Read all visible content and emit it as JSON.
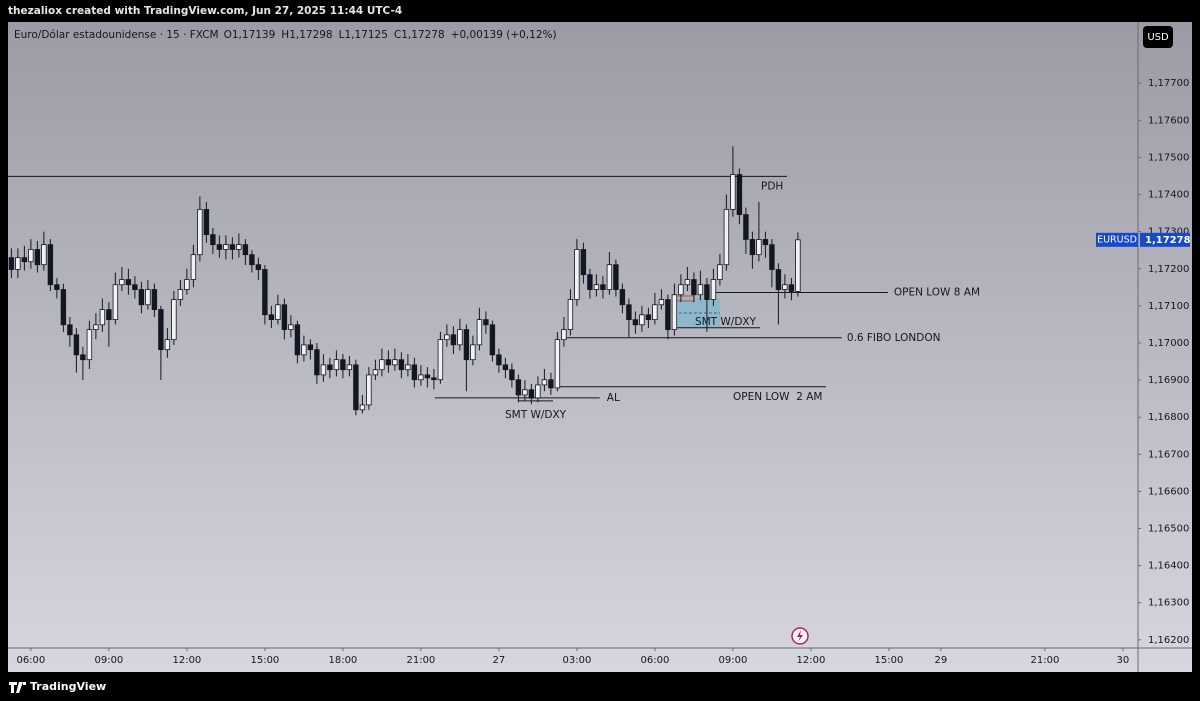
{
  "header": {
    "title": "thezaliox created with TradingView.com, Jun 27, 2025 11:44 UTC-4"
  },
  "footer": {
    "brand": "TradingView"
  },
  "chart_data": {
    "type": "candlestick",
    "title": "Euro/Dólar estadounidense · 15 · FXCM",
    "ohlc_legend": [
      "O1,17139",
      "H1,17298",
      "L1,17125",
      "C1,17278",
      "+0,00139 (+0,12%)"
    ],
    "currency": "USD",
    "symbol_tag": "EURUSD",
    "last_price_label": "1,17278",
    "up_color": "#f2f2f4",
    "down_color": "#131722",
    "border_color": "#131722",
    "grid": false,
    "xlim": [
      5.12,
      48.58
    ],
    "ylim": [
      1.16178,
      1.17865
    ],
    "xticks": [
      {
        "value": 6,
        "label": "06:00"
      },
      {
        "value": 9,
        "label": "09:00"
      },
      {
        "value": 12,
        "label": "12:00"
      },
      {
        "value": 15,
        "label": "15:00"
      },
      {
        "value": 18,
        "label": "18:00"
      },
      {
        "value": 21,
        "label": "21:00"
      },
      {
        "value": 24,
        "label": "27"
      },
      {
        "value": 27,
        "label": "03:00"
      },
      {
        "value": 30,
        "label": "06:00"
      },
      {
        "value": 33,
        "label": "09:00"
      },
      {
        "value": 36,
        "label": "12:00"
      },
      {
        "value": 39,
        "label": "15:00"
      },
      {
        "value": 41,
        "label": "29"
      },
      {
        "value": 45,
        "label": "21:00"
      },
      {
        "value": 48,
        "label": "30"
      }
    ],
    "yticks": [
      {
        "value": 1.162,
        "label": "1,16200"
      },
      {
        "value": 1.163,
        "label": "1,16300"
      },
      {
        "value": 1.164,
        "label": "1,16400"
      },
      {
        "value": 1.165,
        "label": "1,16500"
      },
      {
        "value": 1.166,
        "label": "1,16600"
      },
      {
        "value": 1.167,
        "label": "1,16700"
      },
      {
        "value": 1.168,
        "label": "1,16800"
      },
      {
        "value": 1.169,
        "label": "1,16900"
      },
      {
        "value": 1.17,
        "label": "1,17000"
      },
      {
        "value": 1.171,
        "label": "1,17100"
      },
      {
        "value": 1.172,
        "label": "1,17200"
      },
      {
        "value": 1.173,
        "label": "1,17300"
      },
      {
        "value": 1.174,
        "label": "1,17400"
      },
      {
        "value": 1.175,
        "label": "1,17500"
      },
      {
        "value": 1.176,
        "label": "1,17600"
      },
      {
        "value": 1.177,
        "label": "1,17700"
      }
    ],
    "x": [
      5.25,
      5.5,
      5.75,
      6,
      6.25,
      6.5,
      6.75,
      7,
      7.25,
      7.5,
      7.75,
      8,
      8.25,
      8.5,
      8.75,
      9,
      9.25,
      9.5,
      9.75,
      10,
      10.25,
      10.5,
      10.75,
      11,
      11.25,
      11.5,
      11.75,
      12,
      12.25,
      12.5,
      12.75,
      13,
      13.25,
      13.5,
      13.75,
      14,
      14.25,
      14.5,
      14.75,
      15,
      15.25,
      15.5,
      15.75,
      16,
      16.25,
      16.5,
      16.75,
      17,
      17.25,
      17.5,
      17.75,
      18,
      18.25,
      18.5,
      18.75,
      19,
      19.25,
      19.5,
      19.75,
      20,
      20.25,
      20.5,
      20.75,
      21,
      21.25,
      21.5,
      21.75,
      22,
      22.25,
      22.5,
      22.75,
      23,
      23.25,
      23.5,
      23.75,
      24,
      24.25,
      24.5,
      24.75,
      25,
      25.25,
      25.5,
      25.75,
      26,
      26.25,
      26.5,
      26.75,
      27,
      27.25,
      27.5,
      27.75,
      28,
      28.25,
      28.5,
      28.75,
      29,
      29.25,
      29.5,
      29.75,
      30,
      30.25,
      30.5,
      30.75,
      31,
      31.25,
      31.5,
      31.75,
      32,
      32.25,
      32.5,
      32.75,
      33,
      33.25,
      33.5,
      33.75,
      34,
      34.25,
      34.5,
      34.75,
      35,
      35.25,
      35.5
    ],
    "open": [
      1.1723,
      1.17198,
      1.1723,
      1.17219,
      1.17252,
      1.17211,
      1.17265,
      1.17157,
      1.17144,
      1.17049,
      1.17022,
      1.16968,
      1.16955,
      1.17036,
      1.17049,
      1.1709,
      1.17063,
      1.17157,
      1.17171,
      1.17157,
      1.17144,
      1.17103,
      1.17144,
      1.1709,
      1.16982,
      1.17009,
      1.17117,
      1.17144,
      1.17171,
      1.17238,
      1.1736,
      1.17292,
      1.17265,
      1.17252,
      1.17265,
      1.17252,
      1.17265,
      1.17238,
      1.17211,
      1.17198,
      1.17076,
      1.17063,
      1.17103,
      1.17036,
      1.17049,
      1.16968,
      1.16995,
      1.16982,
      1.16914,
      1.16941,
      1.16928,
      1.16955,
      1.16928,
      1.16941,
      1.1682,
      1.16833,
      1.16914,
      1.16928,
      1.16955,
      1.16941,
      1.16955,
      1.16928,
      1.16941,
      1.16901,
      1.16914,
      1.16906,
      1.16901,
      1.17009,
      1.17022,
      1.16995,
      1.17036,
      1.16955,
      1.16995,
      1.17063,
      1.17049,
      1.16968,
      1.16941,
      1.16928,
      1.16901,
      1.1686,
      1.16874,
      1.16852,
      1.16887,
      1.16901,
      1.16879,
      1.17009,
      1.17036,
      1.17117,
      1.17252,
      1.17184,
      1.17144,
      1.17157,
      1.17144,
      1.17211,
      1.17144,
      1.17103,
      1.17063,
      1.17049,
      1.17076,
      1.17063,
      1.17103,
      1.17117,
      1.17036,
      1.1713,
      1.17157,
      1.17171,
      1.1713,
      1.17157,
      1.17117,
      1.17171,
      1.17211,
      1.1736,
      1.17454,
      1.17346,
      1.17279,
      1.17238,
      1.17279,
      1.17265,
      1.17198,
      1.17144,
      1.17157,
      1.17139
    ],
    "high": [
      1.17255,
      1.17255,
      1.17262,
      1.1728,
      1.17275,
      1.173,
      1.1728,
      1.17175,
      1.1716,
      1.1707,
      1.1704,
      1.1699,
      1.1706,
      1.1708,
      1.1712,
      1.1711,
      1.1719,
      1.17205,
      1.172,
      1.1718,
      1.17165,
      1.1717,
      1.1716,
      1.171,
      1.1704,
      1.1714,
      1.1717,
      1.172,
      1.17265,
      1.17395,
      1.1738,
      1.1731,
      1.1729,
      1.1729,
      1.17285,
      1.17295,
      1.1728,
      1.1725,
      1.1723,
      1.1721,
      1.171,
      1.1713,
      1.1712,
      1.17075,
      1.1706,
      1.1702,
      1.1701,
      1.17,
      1.1697,
      1.1696,
      1.1698,
      1.1697,
      1.16965,
      1.16955,
      1.1686,
      1.16935,
      1.16955,
      1.16985,
      1.1698,
      1.16985,
      1.16975,
      1.1697,
      1.1696,
      1.1694,
      1.16935,
      1.1693,
      1.1703,
      1.1705,
      1.17045,
      1.17065,
      1.1705,
      1.1702,
      1.17095,
      1.17085,
      1.1706,
      1.16985,
      1.1696,
      1.16945,
      1.16915,
      1.169,
      1.1689,
      1.1691,
      1.1693,
      1.1692,
      1.1703,
      1.1707,
      1.17145,
      1.1728,
      1.1727,
      1.172,
      1.17185,
      1.1718,
      1.17245,
      1.17225,
      1.1716,
      1.1712,
      1.17085,
      1.171,
      1.17095,
      1.17135,
      1.17145,
      1.1713,
      1.1716,
      1.17185,
      1.17205,
      1.1719,
      1.17195,
      1.17175,
      1.172,
      1.1724,
      1.174,
      1.1753,
      1.1747,
      1.17365,
      1.173,
      1.1738,
      1.173,
      1.1728,
      1.17215,
      1.17185,
      1.17175,
      1.17298
    ],
    "low": [
      1.17175,
      1.17175,
      1.17195,
      1.172,
      1.1719,
      1.17195,
      1.1714,
      1.1712,
      1.1703,
      1.1699,
      1.1692,
      1.169,
      1.1693,
      1.1701,
      1.1703,
      1.1699,
      1.1705,
      1.1714,
      1.1713,
      1.1712,
      1.1708,
      1.1709,
      1.1707,
      1.169,
      1.1696,
      1.16995,
      1.171,
      1.1713,
      1.1715,
      1.1722,
      1.1727,
      1.1724,
      1.1723,
      1.17225,
      1.17225,
      1.1723,
      1.1721,
      1.1719,
      1.1717,
      1.1705,
      1.1704,
      1.1705,
      1.1701,
      1.17015,
      1.16945,
      1.1695,
      1.16955,
      1.1689,
      1.16895,
      1.16905,
      1.1691,
      1.16905,
      1.1691,
      1.16805,
      1.1681,
      1.1682,
      1.169,
      1.1691,
      1.1692,
      1.16925,
      1.16905,
      1.1691,
      1.1688,
      1.16885,
      1.1688,
      1.16875,
      1.1689,
      1.1699,
      1.1697,
      1.1698,
      1.1687,
      1.1694,
      1.1698,
      1.17025,
      1.1695,
      1.1692,
      1.16905,
      1.1688,
      1.1684,
      1.16845,
      1.16835,
      1.1684,
      1.1687,
      1.1686,
      1.1687,
      1.1699,
      1.1702,
      1.171,
      1.1716,
      1.1712,
      1.17125,
      1.1712,
      1.1713,
      1.17125,
      1.1708,
      1.17015,
      1.17025,
      1.1703,
      1.1704,
      1.1705,
      1.1709,
      1.1701,
      1.1702,
      1.1711,
      1.1714,
      1.1711,
      1.17115,
      1.1703,
      1.171,
      1.17155,
      1.17195,
      1.1734,
      1.1732,
      1.1724,
      1.172,
      1.1722,
      1.1723,
      1.1715,
      1.1705,
      1.1712,
      1.17115,
      1.17125
    ],
    "close": [
      1.17198,
      1.1723,
      1.17219,
      1.17252,
      1.17211,
      1.17265,
      1.17157,
      1.17144,
      1.17049,
      1.17022,
      1.16968,
      1.16955,
      1.17036,
      1.17049,
      1.1709,
      1.17063,
      1.17157,
      1.17171,
      1.17157,
      1.17144,
      1.17103,
      1.17144,
      1.1709,
      1.16982,
      1.17009,
      1.17117,
      1.17144,
      1.17171,
      1.17238,
      1.1736,
      1.17292,
      1.17265,
      1.17252,
      1.17265,
      1.17252,
      1.17265,
      1.17238,
      1.17211,
      1.17198,
      1.17076,
      1.17063,
      1.17103,
      1.17036,
      1.17049,
      1.16968,
      1.16995,
      1.16982,
      1.16914,
      1.16941,
      1.16928,
      1.16955,
      1.16928,
      1.16941,
      1.1682,
      1.16833,
      1.16914,
      1.16928,
      1.16955,
      1.16941,
      1.16955,
      1.16928,
      1.16941,
      1.16901,
      1.16914,
      1.16906,
      1.16901,
      1.17009,
      1.17022,
      1.16995,
      1.17036,
      1.16955,
      1.16995,
      1.17063,
      1.17049,
      1.16968,
      1.16941,
      1.16928,
      1.16901,
      1.1686,
      1.16874,
      1.16852,
      1.16887,
      1.16901,
      1.16879,
      1.17009,
      1.17036,
      1.17117,
      1.17252,
      1.17184,
      1.17144,
      1.17157,
      1.17144,
      1.17211,
      1.17144,
      1.17103,
      1.17063,
      1.17049,
      1.17076,
      1.17063,
      1.17103,
      1.17117,
      1.17036,
      1.1713,
      1.17157,
      1.17171,
      1.1713,
      1.17157,
      1.17117,
      1.17171,
      1.17211,
      1.1736,
      1.17454,
      1.17346,
      1.17279,
      1.17238,
      1.17279,
      1.17265,
      1.17198,
      1.17144,
      1.17157,
      1.17139,
      1.17278
    ],
    "annotations": [
      {
        "text": "PDH",
        "y": 1.17449,
        "x": [
          5.12,
          35.08
        ]
      },
      {
        "text": "OPEN LOW 8 AM",
        "y": 1.17136,
        "x": [
          32.23,
          38.96
        ]
      },
      {
        "text": "0.6 FIBO LONDON",
        "y": 1.17014,
        "x": [
          26.54,
          37.19
        ]
      },
      {
        "text": "OPEN LOW  2 AM",
        "y": 1.16882,
        "x": [
          26.35,
          36.58
        ]
      },
      {
        "text": "AL",
        "y": 1.16852,
        "x": [
          21.54,
          27.88
        ]
      },
      {
        "text": "SMT W/DXY",
        "y": 1.16844,
        "x": [
          24.73,
          26.08
        ]
      },
      {
        "text": "SMT W/DXY",
        "y": 1.17041,
        "x": [
          30.77,
          34.04
        ]
      }
    ]
  }
}
